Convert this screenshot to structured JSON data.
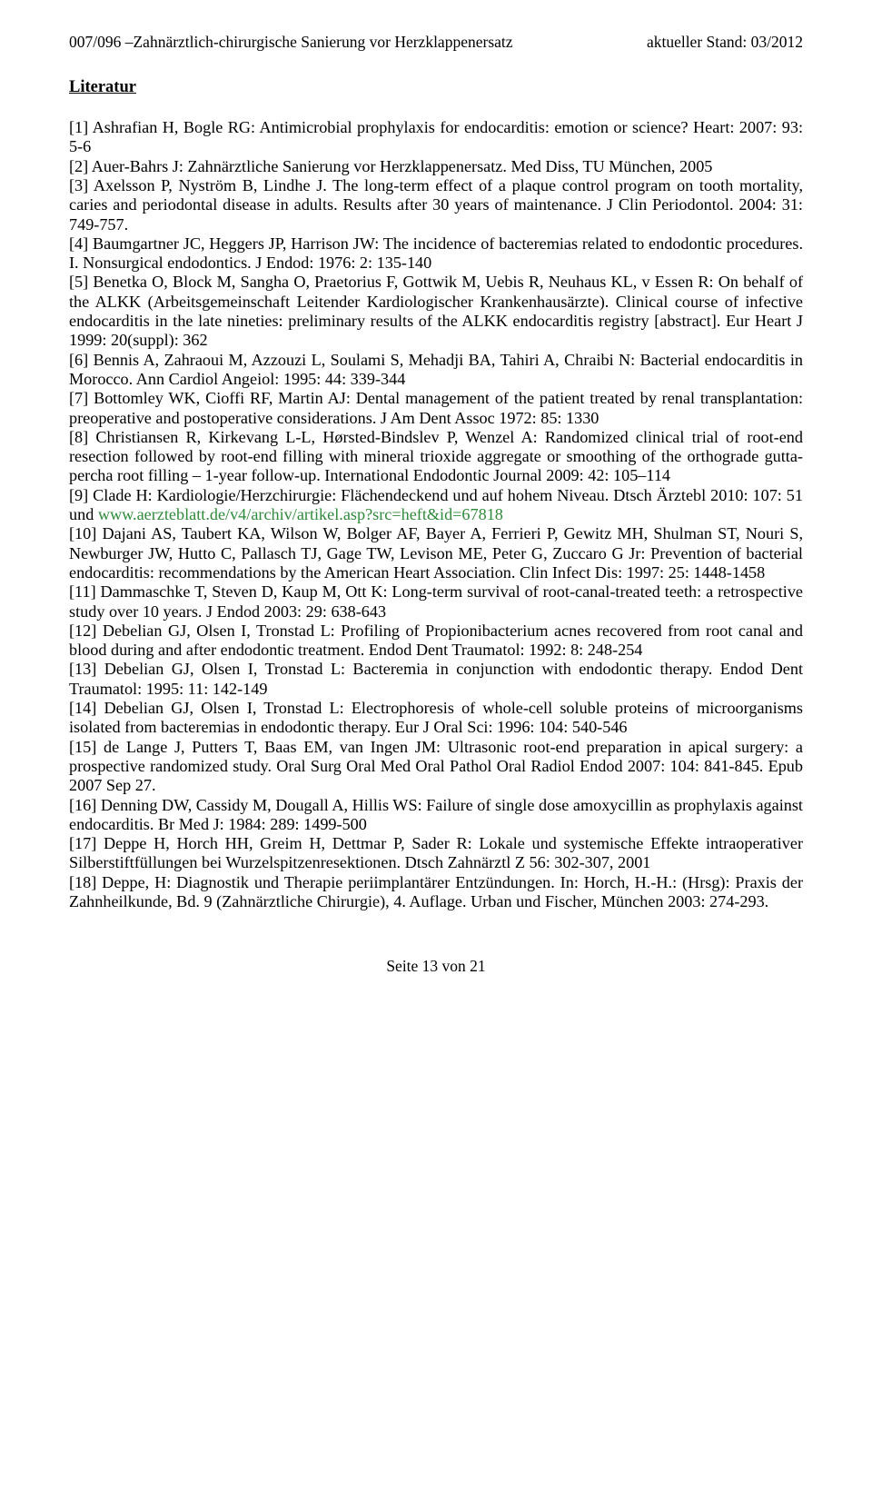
{
  "header": {
    "left": "007/096 –Zahnärztlich-chirurgische Sanierung vor Herzklappenersatz",
    "right": "aktueller Stand: 03/2012"
  },
  "title": "Literatur",
  "refs": {
    "r1": "[1]   Ashrafian H, Bogle RG: Antimicrobial prophylaxis for endocarditis: emotion or science? Heart: 2007: 93: 5-6",
    "r2": "[2]   Auer-Bahrs J: Zahnärztliche Sanierung vor Herzklappenersatz. Med Diss, TU München, 2005",
    "r3": "[3]   Axelsson P, Nyström B, Lindhe J. The long-term effect of a plaque control program on tooth mortality, caries and periodontal disease in adults. Results after 30 years of maintenance. J Clin Periodontol. 2004: 31: 749-757.",
    "r4": "[4]   Baumgartner JC, Heggers JP, Harrison JW: The incidence of bacteremias related to endodontic procedures. I. Nonsurgical endodontics. J Endod: 1976: 2: 135-140",
    "r5": "[5]   Benetka O, Block M, Sangha O, Praetorius F, Gottwik M, Uebis R, Neuhaus KL, v Essen R: On behalf of the ALKK (Arbeitsgemeinschaft Leitender Kardiologischer Krankenhausärzte). Clinical course of infective endocarditis in the late nineties: preliminary results of the ALKK endocarditis registry [abstract]. Eur Heart J 1999: 20(suppl): 362",
    "r6": "[6]   Bennis A, Zahraoui M, Azzouzi L, Soulami S, Mehadji BA, Tahiri A, Chraibi N: Bacterial endocarditis in Morocco. Ann Cardiol Angeiol: 1995: 44: 339-344",
    "r7": "[7]   Bottomley WK, Cioffi RF, Martin AJ: Dental management of the patient treated by renal transplantation: preoperative and postoperative considerations. J Am Dent Assoc 1972: 85: 1330",
    "r8": "[8]   Christiansen R, Kirkevang L-L, Hørsted-Bindslev P, Wenzel A: Randomized clinical trial of root-end resection followed by root-end filling with mineral trioxide aggregate or smoothing of the orthograde gutta-percha root filling – 1-year follow-up. International Endodontic Journal 2009: 42: 105–114",
    "r9a": "[9]     Clade H: Kardiologie/Herzchirurgie: Flächendeckend und auf hohem Niveau. Dtsch Ärztebl 2010: 107: 51 und ",
    "r9link": "www.aerzteblatt.de/v4/archiv/artikel.asp?src=heft&id=67818",
    "r10": "[10] Dajani AS, Taubert KA, Wilson W, Bolger AF, Bayer A, Ferrieri P, Gewitz MH, Shulman ST, Nouri S, Newburger JW, Hutto C, Pallasch TJ, Gage TW, Levison ME, Peter G, Zuccaro G Jr: Prevention of bacterial endocarditis: recommendations by the American Heart Association. Clin Infect Dis: 1997: 25: 1448-1458",
    "r11": "[11] Dammaschke T, Steven D, Kaup M, Ott K: Long-term survival of root-canal-treated teeth: a retrospective study over 10 years. J Endod 2003: 29: 638-643",
    "r12": "[12] Debelian GJ, Olsen I, Tronstad L: Profiling of Propionibacterium acnes recovered from root canal and blood during and after endodontic treatment. Endod Dent Traumatol: 1992: 8: 248-254",
    "r13": "[13] Debelian GJ, Olsen I, Tronstad L: Bacteremia in conjunction with endodontic therapy. Endod Dent Traumatol: 1995: 11: 142-149",
    "r14": "[14] Debelian GJ, Olsen I, Tronstad L: Electrophoresis of whole-cell soluble proteins of microorganisms isolated from bacteremias in endodontic therapy. Eur J Oral Sci: 1996: 104: 540-546",
    "r15": "[15] de Lange J, Putters T, Baas EM, van Ingen JM: Ultrasonic root-end preparation in apical surgery: a prospective randomized study. Oral Surg Oral Med Oral Pathol Oral Radiol Endod 2007: 104: 841-845. Epub 2007 Sep 27.",
    "r16": "[16] Denning DW, Cassidy M, Dougall A, Hillis WS: Failure of single dose amoxycillin as prophylaxis against endocarditis. Br Med J: 1984: 289: 1499-500",
    "r17": "[17] Deppe H, Horch HH, Greim H, Dettmar P, Sader R: Lokale und systemische Effekte intraoperativer Silberstiftfüllungen bei Wurzelspitzenresektionen. Dtsch Zahnärztl Z 56: 302-307, 2001",
    "r18": "[18] Deppe, H: Diagnostik und Therapie periimplantärer Entzündungen. In: Horch, H.-H.: (Hrsg): Praxis der Zahnheilkunde, Bd. 9 (Zahnärztliche Chirurgie), 4. Auflage. Urban und Fischer, München 2003: 274-293."
  },
  "footer": "Seite 13 von 21"
}
